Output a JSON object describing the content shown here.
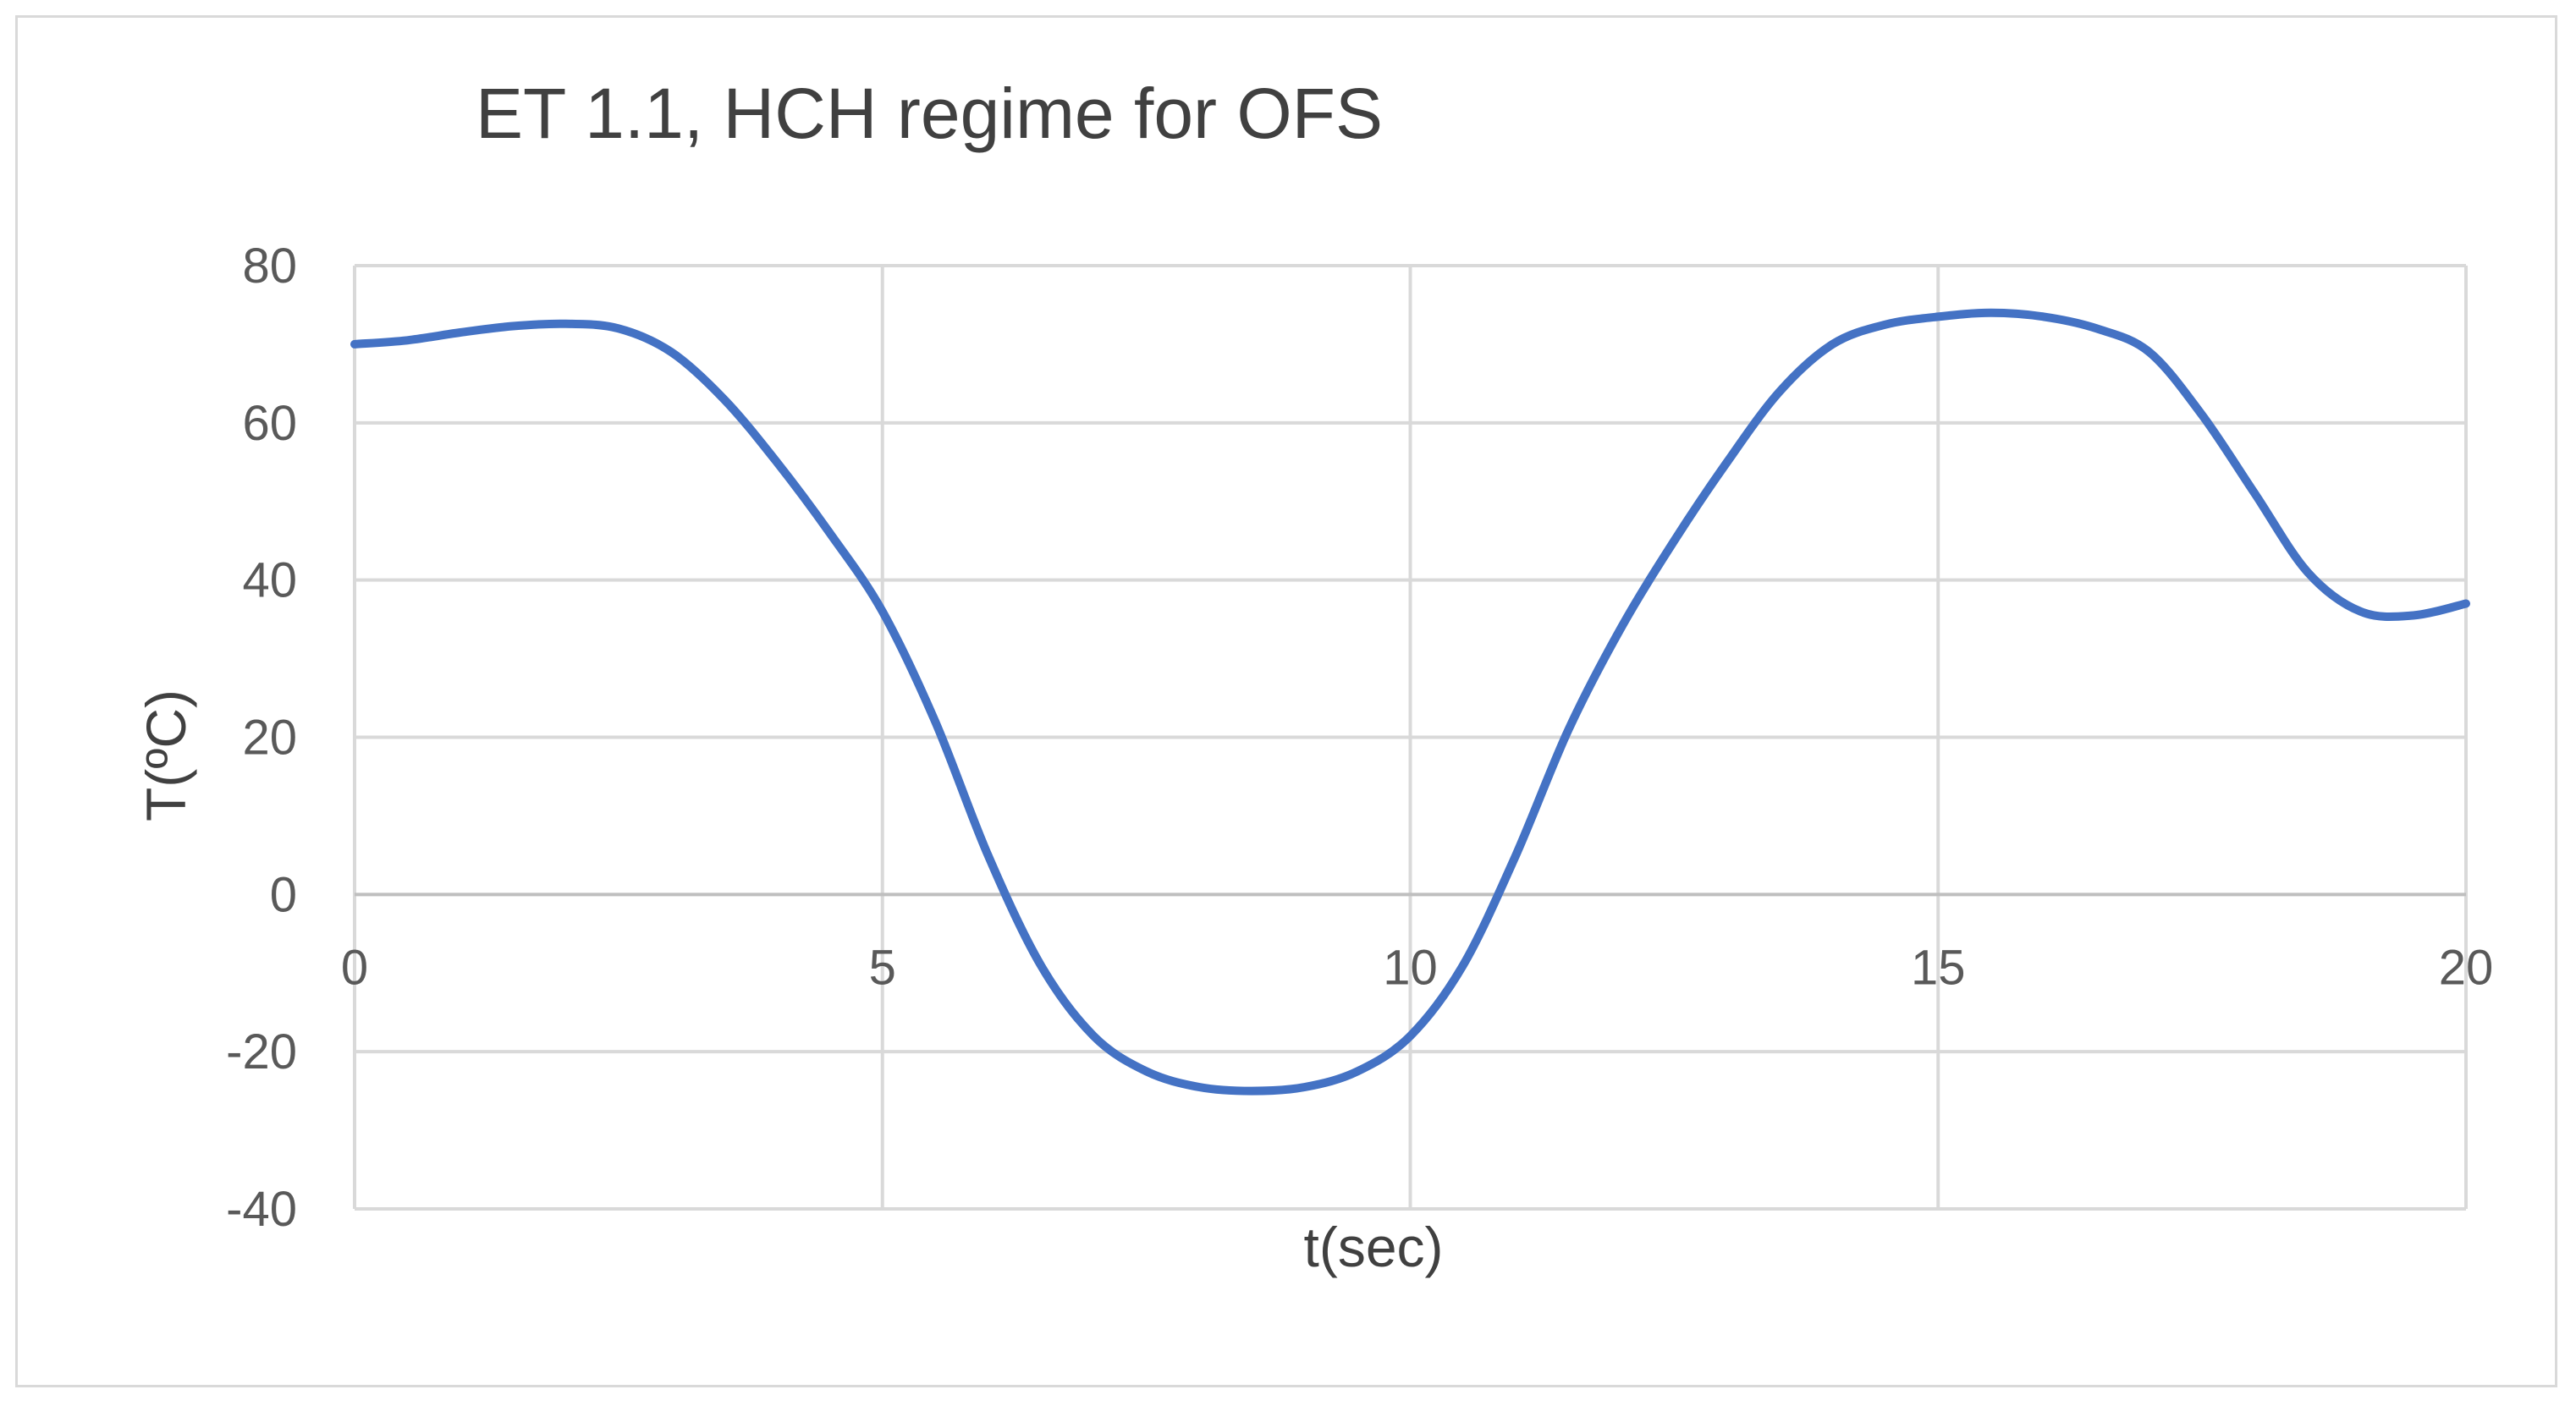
{
  "chart_data": {
    "type": "line",
    "title": "ET 1.1, HCH regime for OFS",
    "xlabel": "t(sec)",
    "ylabel": "T(ºC)",
    "xlim": [
      0,
      20
    ],
    "ylim": [
      -40,
      80
    ],
    "xticks": [
      0,
      5,
      10,
      15,
      20
    ],
    "yticks": [
      -40,
      -20,
      0,
      20,
      40,
      60,
      80
    ],
    "grid": true,
    "legend": "none",
    "series": [
      {
        "color": "#4472c4",
        "x": [
          0,
          0.5,
          1,
          1.5,
          2,
          2.5,
          3,
          3.5,
          4,
          4.5,
          5,
          5.5,
          6,
          6.5,
          7,
          7.5,
          8,
          8.5,
          9,
          9.5,
          10,
          10.5,
          11,
          11.5,
          12,
          12.5,
          13,
          13.5,
          14,
          14.5,
          15,
          15.5,
          16,
          16.5,
          17,
          17.5,
          18,
          18.5,
          19,
          19.5,
          20
        ],
        "y": [
          70,
          70.5,
          71.5,
          72.3,
          72.6,
          72,
          69,
          63,
          55,
          46,
          36,
          22,
          5,
          -9,
          -18,
          -22.5,
          -24.5,
          -25,
          -24.5,
          -22.5,
          -18,
          -9,
          5,
          21,
          34,
          45,
          55,
          64,
          70,
          72.5,
          73.5,
          74,
          73.5,
          72,
          69,
          61,
          51,
          41,
          36,
          35.5,
          37
        ]
      }
    ]
  }
}
